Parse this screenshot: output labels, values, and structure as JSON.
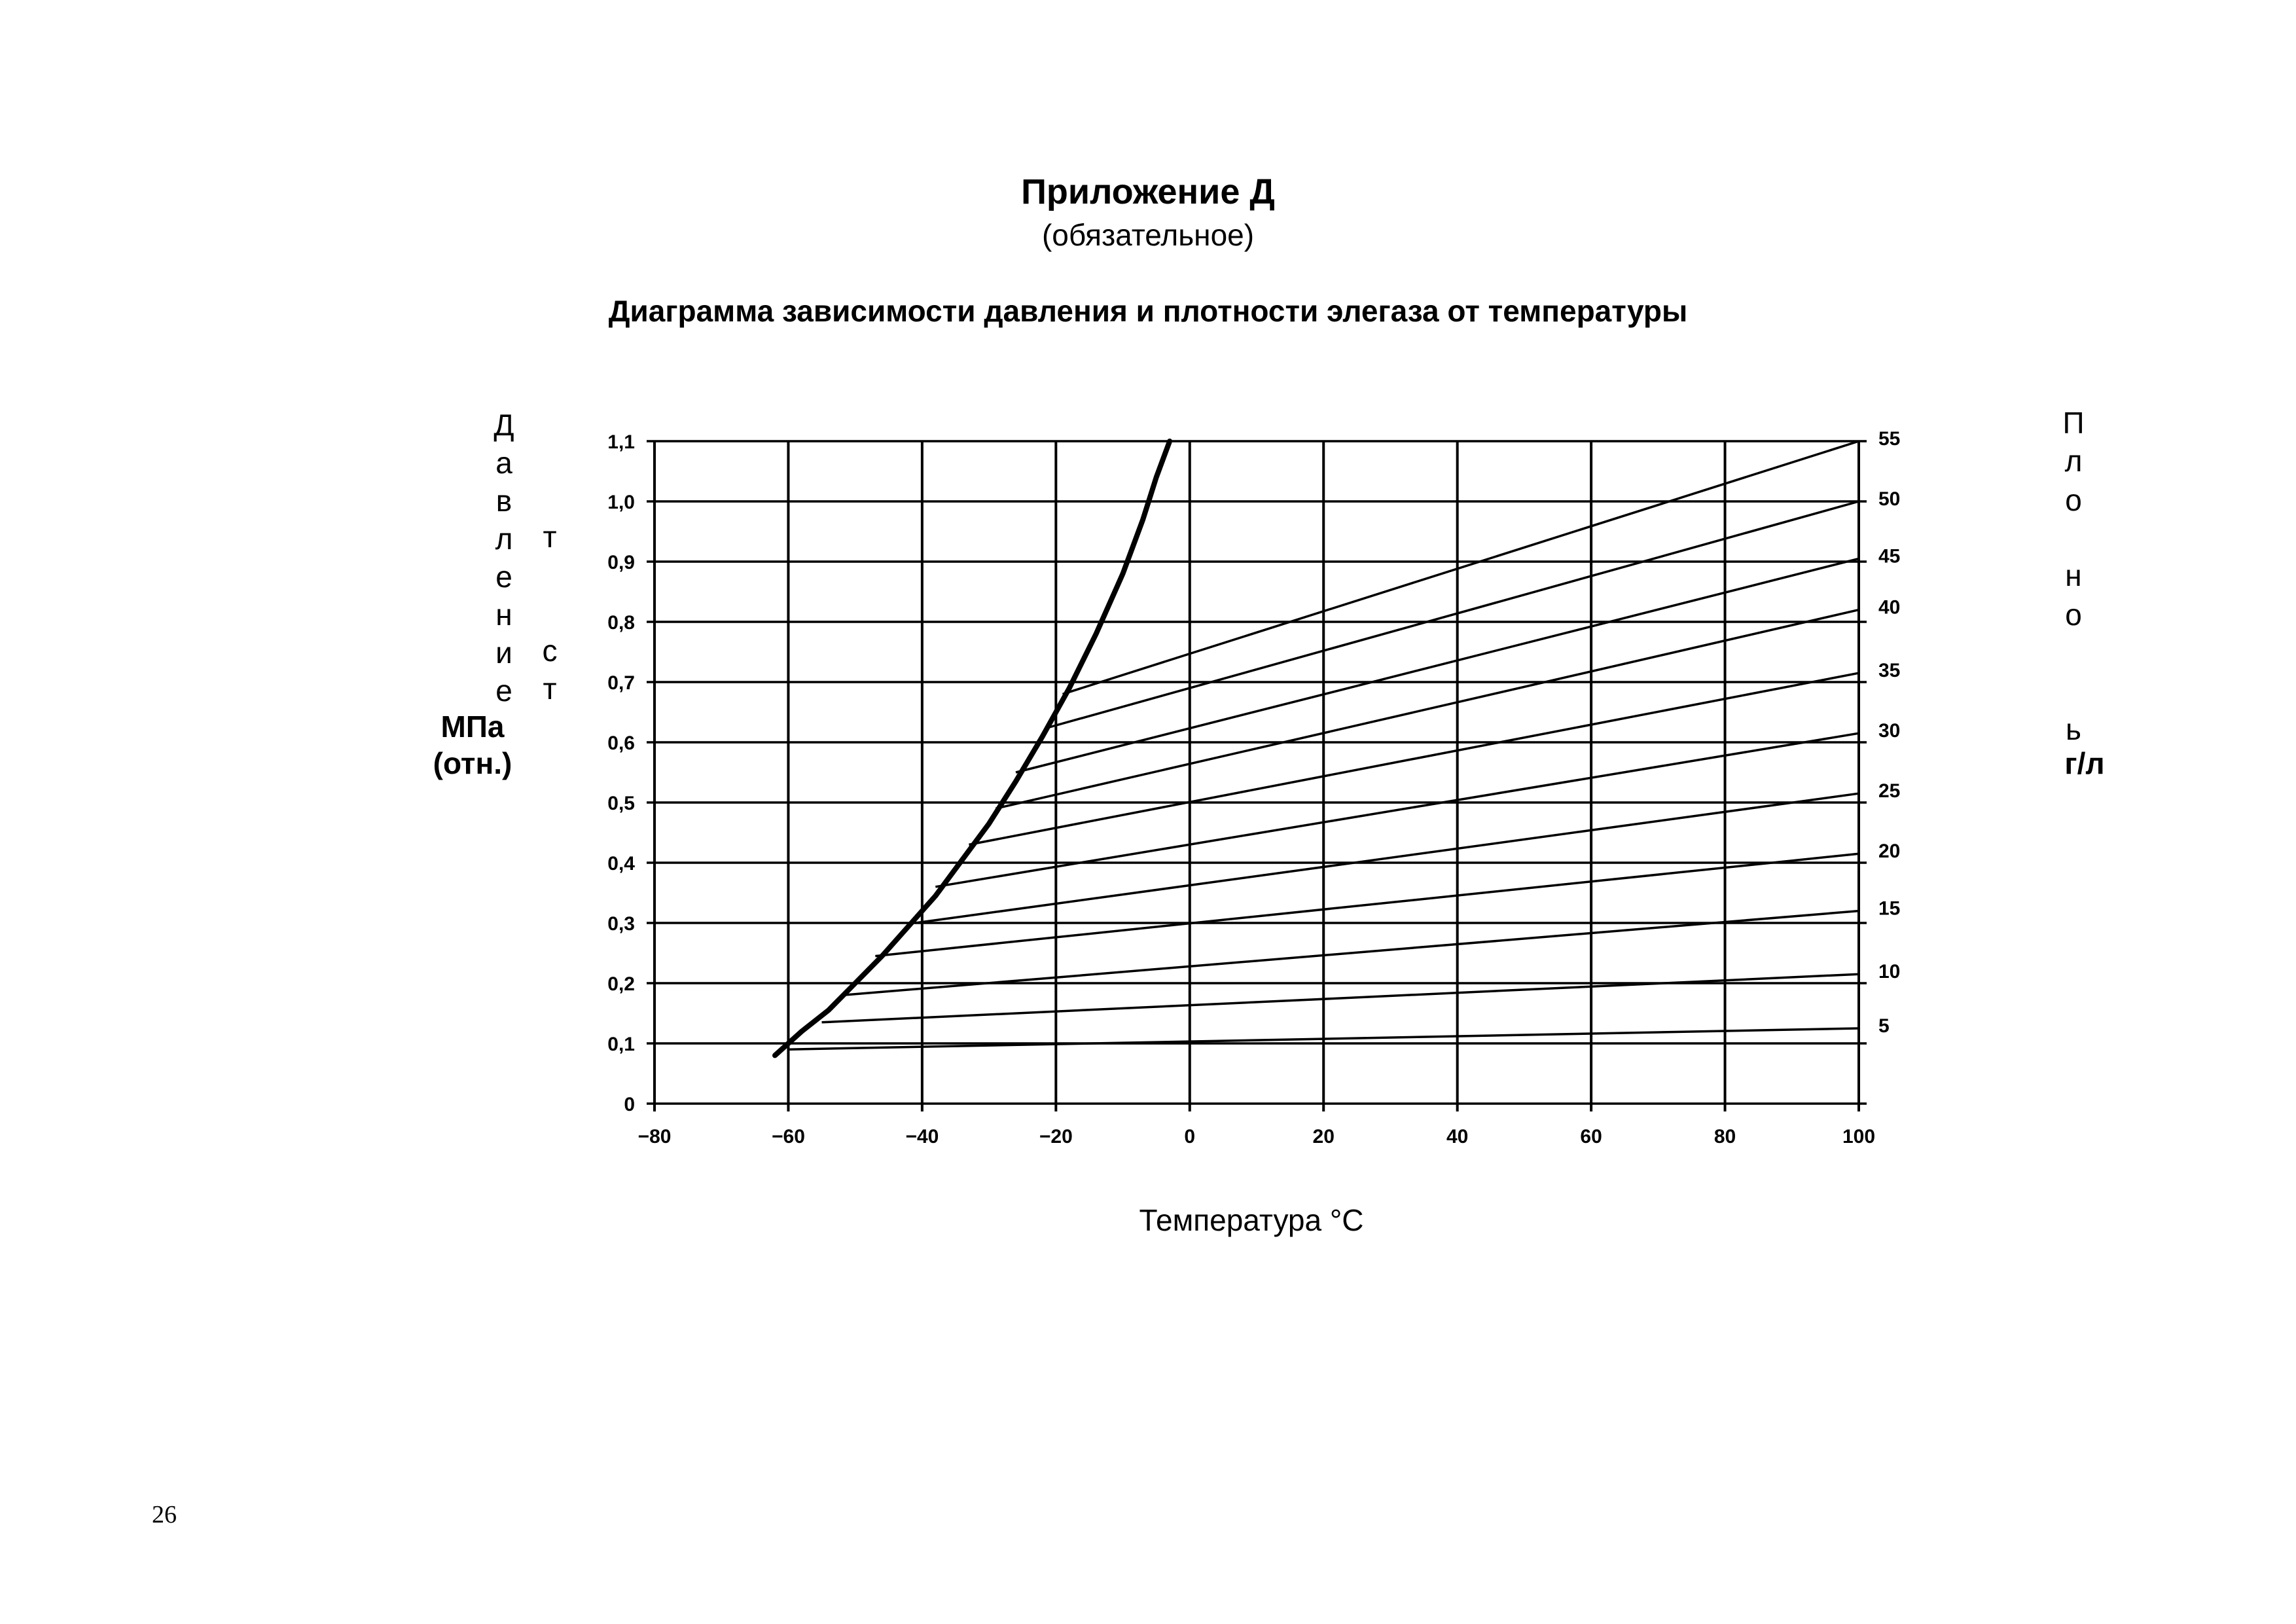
{
  "page": {
    "appendix_title": "Приложение Д",
    "appendix_subtitle": "(обязательное)",
    "page_number": "26"
  },
  "chart_data": {
    "type": "line",
    "title": "Диаграмма зависимости давления и плотности элегаза от температуры",
    "xlabel": "Температура °С",
    "ylabel_left": {
      "letters_col1": [
        "Д",
        "а",
        "в",
        "л",
        "е",
        "н",
        "и",
        "е"
      ],
      "letters_col2": [
        "т",
        "с",
        "т"
      ],
      "unit_lines": [
        "МПа",
        "(отн.)"
      ]
    },
    "ylabel_right": {
      "letters": [
        "П",
        "л",
        "о",
        "н",
        "о",
        "ь"
      ],
      "unit": "г/л"
    },
    "xlim": [
      -80,
      100
    ],
    "ylim": [
      0,
      1.1
    ],
    "x_ticks": [
      -80,
      -60,
      -40,
      -20,
      0,
      20,
      40,
      60,
      80,
      100
    ],
    "x_tick_labels": [
      "−80",
      "−60",
      "−40",
      "−20",
      "0",
      "20",
      "40",
      "60",
      "80",
      "100"
    ],
    "y_ticks": [
      0,
      0.1,
      0.2,
      0.3,
      0.4,
      0.5,
      0.6,
      0.7,
      0.8,
      0.9,
      1.0,
      1.1
    ],
    "y_tick_labels": [
      "0",
      "0,1",
      "0,2",
      "0,3",
      "0,4",
      "0,5",
      "0,6",
      "0,7",
      "0,8",
      "0,9",
      "1,0",
      "1,1"
    ],
    "right_ticks": [
      {
        "label": "55",
        "y": 1.1
      },
      {
        "label": "50",
        "y": 1.0
      },
      {
        "label": "45",
        "y": 0.905
      },
      {
        "label": "40",
        "y": 0.82
      },
      {
        "label": "35",
        "y": 0.715
      },
      {
        "label": "30",
        "y": 0.615
      },
      {
        "label": "25",
        "y": 0.515
      },
      {
        "label": "20",
        "y": 0.415
      },
      {
        "label": "15",
        "y": 0.32
      },
      {
        "label": "10",
        "y": 0.215
      },
      {
        "label": "5",
        "y": 0.125
      }
    ],
    "grid": true,
    "saturation_curve": {
      "x": [
        -62,
        -58,
        -54,
        -50,
        -46,
        -42,
        -38,
        -34,
        -30,
        -26,
        -22,
        -18,
        -14,
        -10,
        -7,
        -5,
        -3
      ],
      "y": [
        0.08,
        0.12,
        0.155,
        0.2,
        0.245,
        0.295,
        0.345,
        0.405,
        0.465,
        0.535,
        0.61,
        0.69,
        0.78,
        0.88,
        0.97,
        1.04,
        1.1
      ]
    },
    "isochores": [
      {
        "density": "5",
        "x": [
          -60,
          100
        ],
        "y": [
          0.09,
          0.125
        ]
      },
      {
        "density": "10",
        "x": [
          -55,
          100
        ],
        "y": [
          0.135,
          0.215
        ]
      },
      {
        "density": "15",
        "x": [
          -52,
          100
        ],
        "y": [
          0.18,
          0.32
        ]
      },
      {
        "density": "20",
        "x": [
          -47,
          100
        ],
        "y": [
          0.245,
          0.415
        ]
      },
      {
        "density": "25",
        "x": [
          -41,
          100
        ],
        "y": [
          0.3,
          0.515
        ]
      },
      {
        "density": "30",
        "x": [
          -38,
          100
        ],
        "y": [
          0.36,
          0.615
        ]
      },
      {
        "density": "35",
        "x": [
          -33,
          100
        ],
        "y": [
          0.43,
          0.715
        ]
      },
      {
        "density": "40",
        "x": [
          -29,
          100
        ],
        "y": [
          0.49,
          0.82
        ]
      },
      {
        "density": "45",
        "x": [
          -26,
          100
        ],
        "y": [
          0.55,
          0.905
        ]
      },
      {
        "density": "50",
        "x": [
          -21,
          100
        ],
        "y": [
          0.625,
          1.0
        ]
      },
      {
        "density": "55",
        "x": [
          -19,
          100
        ],
        "y": [
          0.68,
          1.1
        ]
      }
    ]
  }
}
